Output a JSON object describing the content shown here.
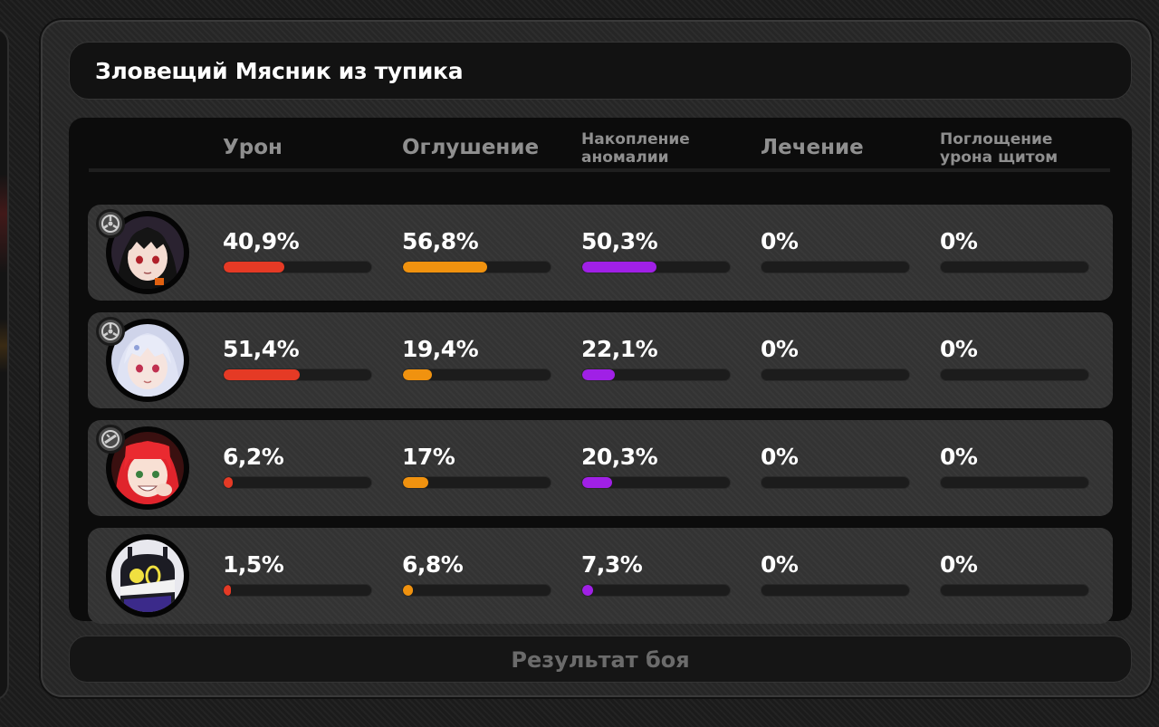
{
  "header": {
    "title": "Зловещий Мясник из тупика"
  },
  "columns": [
    {
      "label": "Урон"
    },
    {
      "label": "Оглушение"
    },
    {
      "label": "Накопление аномалии"
    },
    {
      "label": "Лечение"
    },
    {
      "label": "Поглощение урона щитом"
    }
  ],
  "columns_lines": [
    [
      "Урон"
    ],
    [
      "Оглушение"
    ],
    [
      "Накопление",
      "аномалии"
    ],
    [
      "Лечение"
    ],
    [
      "Поглощение",
      "урона щитом"
    ]
  ],
  "bar_colors": [
    "#e53a25",
    "#f0920f",
    "#a020e6",
    "#e0e0e0",
    "#e0e0e0"
  ],
  "rows": [
    {
      "badge_icon": "rupture-attribute-icon",
      "avatar": "dark-haired-agent-portrait",
      "values": [
        "40,9%",
        "56,8%",
        "50,3%",
        "0%",
        "0%"
      ],
      "fractions": [
        0.409,
        0.568,
        0.503,
        0,
        0
      ]
    },
    {
      "badge_icon": "rupture-attribute-icon",
      "avatar": "silver-haired-agent-portrait",
      "values": [
        "51,4%",
        "19,4%",
        "22,1%",
        "0%",
        "0%"
      ],
      "fractions": [
        0.514,
        0.194,
        0.221,
        0,
        0
      ]
    },
    {
      "badge_icon": "stun-attribute-icon",
      "avatar": "red-haired-agent-portrait",
      "values": [
        "6,2%",
        "17%",
        "20,3%",
        "0%",
        "0%"
      ],
      "fractions": [
        0.062,
        0.17,
        0.203,
        0,
        0
      ]
    },
    {
      "badge_icon": "",
      "avatar": "bangboo-portrait",
      "values": [
        "1,5%",
        "6,8%",
        "7,3%",
        "0%",
        "0%"
      ],
      "fractions": [
        0.015,
        0.068,
        0.073,
        0,
        0
      ]
    }
  ],
  "footer": {
    "result_label": "Результат боя"
  }
}
